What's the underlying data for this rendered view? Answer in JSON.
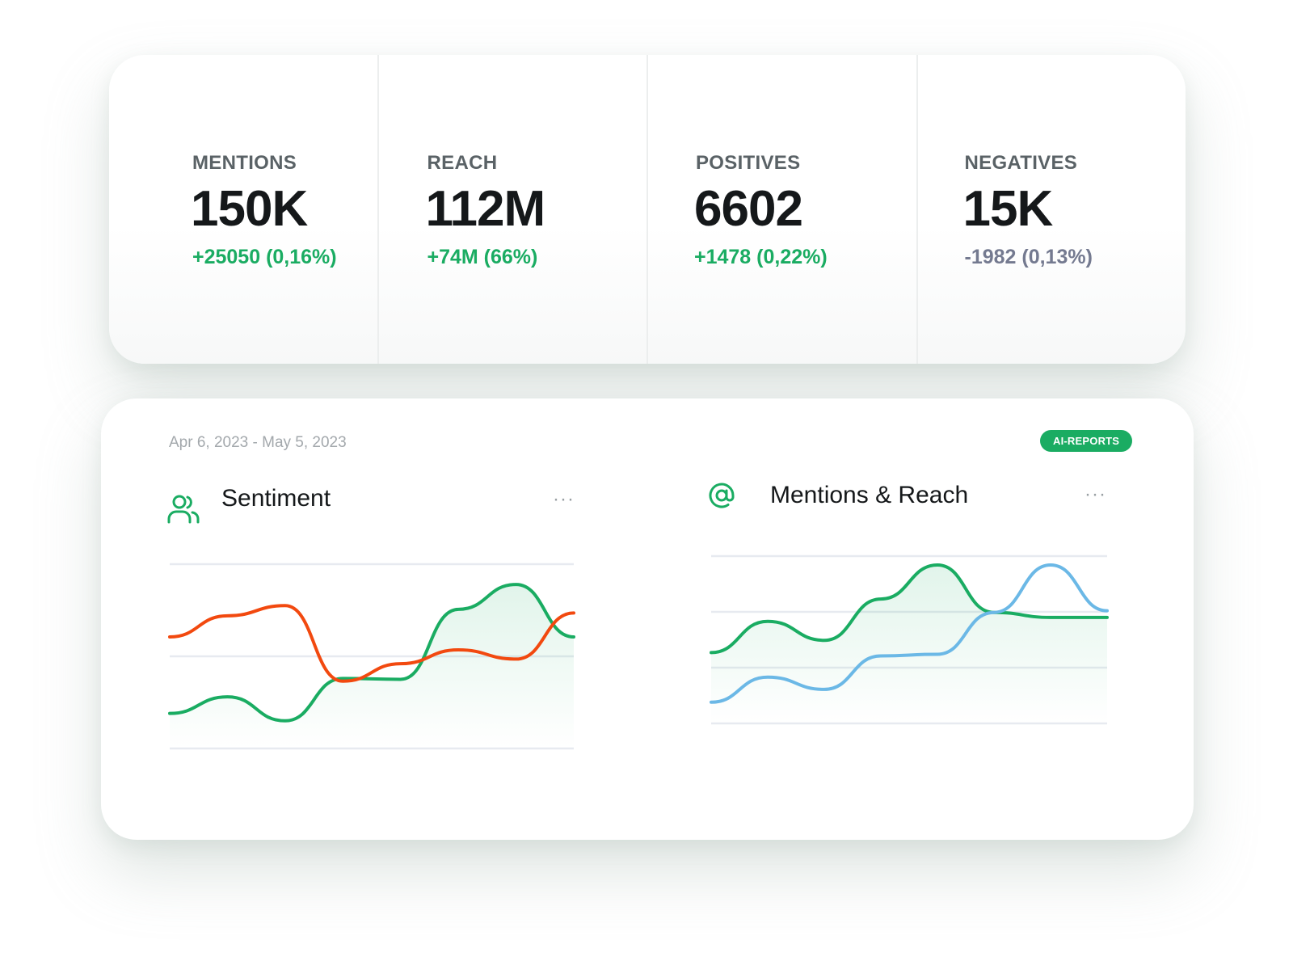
{
  "stats": [
    {
      "label": "MENTIONS",
      "value": "150K",
      "change": "+25050 (0,16%)",
      "trend": "up"
    },
    {
      "label": "REACH",
      "value": "112M",
      "change": "+74M (66%)",
      "trend": "up"
    },
    {
      "label": "POSITIVES",
      "value": "6602",
      "change": "+1478 (0,22%)",
      "trend": "up"
    },
    {
      "label": "NEGATIVES",
      "value": "15K",
      "change": "-1982 (0,13%)",
      "trend": "down"
    }
  ],
  "report": {
    "date_range": "Apr 6, 2023 - May 5, 2023",
    "badge": "AI-REPORTS"
  },
  "panels": {
    "sentiment": {
      "title": "Sentiment",
      "icon": "users-icon"
    },
    "mentions_reach": {
      "title": "Mentions & Reach",
      "icon": "at-icon"
    }
  },
  "colors": {
    "green": "#1aac62",
    "red": "#f2490f",
    "blue": "#6bb8e6",
    "grid": "#e7eaf0"
  },
  "chart_data": [
    {
      "type": "line",
      "x": [
        0,
        1,
        2,
        3,
        4,
        5,
        6,
        7
      ],
      "series": [
        {
          "values": [
            0.38,
            0.56,
            0.3,
            0.76,
            0.75,
            1.51,
            1.78,
            1.21
          ]
        },
        {
          "values": [
            1.21,
            1.44,
            1.55,
            0.73,
            0.92,
            1.07,
            0.97,
            1.47
          ]
        }
      ],
      "ylim": [
        0,
        2
      ],
      "grid": true
    },
    {
      "type": "line",
      "x": [
        0,
        1,
        2,
        3,
        4,
        5,
        6,
        7
      ],
      "series": [
        {
          "values": [
            1.27,
            1.83,
            1.49,
            2.23,
            2.84,
            1.99,
            1.9,
            1.9
          ]
        },
        {
          "values": [
            0.38,
            0.83,
            0.61,
            1.21,
            1.24,
            1.99,
            2.84,
            2.02
          ]
        }
      ],
      "ylim": [
        0,
        3
      ],
      "grid": true
    }
  ]
}
